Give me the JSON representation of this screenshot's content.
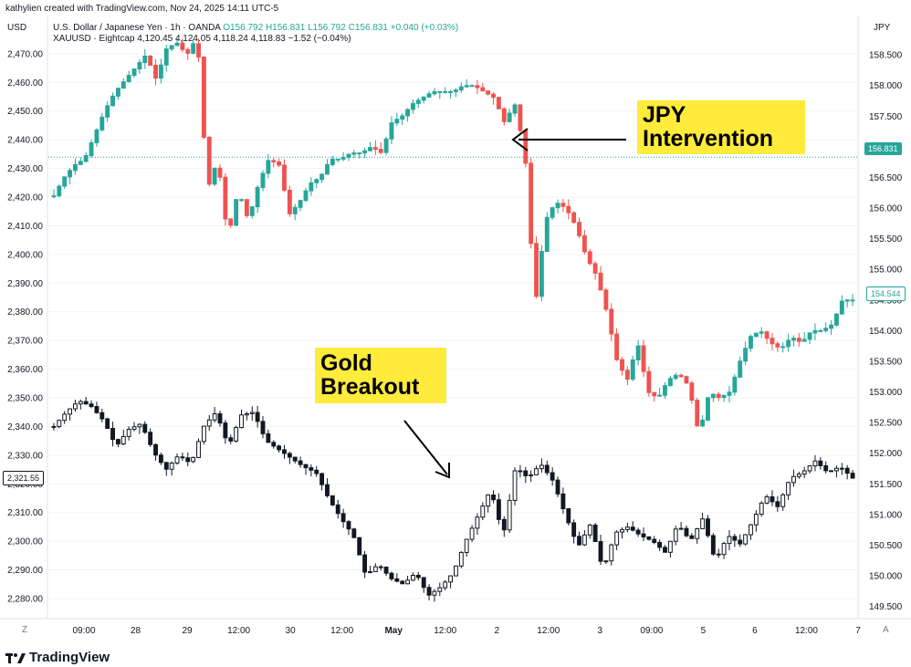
{
  "credit": "kathylien created with TradingView.com, Nov 24, 2025 14:11 UTC-5",
  "left_axis_label": "USD",
  "right_axis_label": "JPY",
  "series_header": {
    "usdjpy": {
      "name": "U.S. Dollar / Japanese Yen · 1h · OANDA",
      "O": "O156.792",
      "H": "H156.831",
      "L": "L156.792",
      "C": "C156.831",
      "change": "+0.040 (+0.03%)"
    },
    "xauusd": {
      "name": "XAUUSD · Eightcap",
      "values": "4,120.45  4,124.05  4,118.24  4,118.83  −1.52 (−0.04%)"
    }
  },
  "annotations": {
    "jpy": "JPY Intervention",
    "gold": "Gold Breakout"
  },
  "last_price_boxes": {
    "usdjpy_current": "156.831",
    "usdjpy_last": "154.544",
    "gold_last": "2,321.55"
  },
  "footer": {
    "logo_text": "TradingView",
    "z_label": "Z",
    "a_label": "A"
  },
  "colors": {
    "up": "#26a69a",
    "down": "#ef5350",
    "gold": "#131722",
    "annotation_bg": "#ffeb3b",
    "grid": "#f0f3fa"
  },
  "chart_data": {
    "type": "candlestick",
    "x_tick_labels": [
      "09:00",
      "28",
      "29",
      "12:00",
      "30",
      "12:00",
      "May",
      "12:00",
      "2",
      "12:00",
      "3",
      "09:00",
      "5",
      "6",
      "12:00",
      "7"
    ],
    "left_axis": {
      "label": "USD",
      "ylim": [
        2273,
        2476
      ],
      "ticks": [
        "2,470.00",
        "2,460.00",
        "2,450.00",
        "2,440.00",
        "2,430.00",
        "2,420.00",
        "2,410.00",
        "2,400.00",
        "2,390.00",
        "2,380.00",
        "2,370.00",
        "2,360.00",
        "2,350.00",
        "2,340.00",
        "2,330.00",
        "2,320.00",
        "2,310.00",
        "2,300.00",
        "2,290.00",
        "2,280.00"
      ]
    },
    "right_axis": {
      "label": "JPY",
      "ylim": [
        149.3,
        158.8
      ],
      "ticks": [
        "158.500",
        "158.000",
        "157.500",
        "157.000",
        "156.500",
        "156.000",
        "155.500",
        "155.000",
        "154.500",
        "154.000",
        "153.500",
        "153.000",
        "152.500",
        "152.000",
        "151.500",
        "151.000",
        "150.500",
        "150.000",
        "149.500"
      ]
    },
    "series": [
      {
        "name": "U.S. Dollar / Japanese Yen",
        "axis": "right",
        "close_path": [
          156.2,
          156.5,
          156.7,
          156.8,
          157.2,
          157.6,
          157.9,
          158.1,
          158.3,
          158.5,
          158.1,
          158.6,
          158.7,
          158.5,
          158.8,
          156.3,
          156.8,
          155.5,
          156.3,
          155.8,
          156.4,
          156.8,
          156.7,
          155.9,
          156.1,
          156.4,
          156.5,
          156.8,
          156.8,
          156.9,
          156.9,
          157.0,
          156.9,
          157.4,
          157.5,
          157.7,
          157.8,
          157.9,
          157.9,
          157.9,
          158.0,
          158.0,
          157.9,
          157.8,
          157.4,
          157.7,
          156.9,
          154.4,
          155.8,
          156.1,
          156.0,
          155.7,
          155.2,
          154.9,
          154.3,
          153.5,
          153.2,
          153.8,
          153.0,
          152.9,
          153.2,
          153.3,
          153.1,
          152.3,
          153.0,
          152.9,
          153.0,
          153.5,
          153.9,
          154.0,
          153.8,
          153.7,
          153.9,
          153.8,
          154.0,
          154.0,
          154.1,
          154.5,
          154.5
        ]
      },
      {
        "name": "XAUUSD",
        "axis": "left",
        "close_path": [
          2340,
          2345,
          2349,
          2347,
          2342,
          2333,
          2339,
          2341,
          2331,
          2325,
          2330,
          2327,
          2340,
          2345,
          2333,
          2344,
          2345,
          2335,
          2332,
          2329,
          2326,
          2324,
          2315,
          2308,
          2302,
          2288,
          2292,
          2287,
          2285,
          2289,
          2281,
          2284,
          2289,
          2300,
          2309,
          2318,
          2302,
          2326,
          2322,
          2327,
          2321,
          2309,
          2298,
          2306,
          2290,
          2303,
          2305,
          2302,
          2300,
          2296,
          2306,
          2300,
          2308,
          2293,
          2302,
          2299,
          2307,
          2316,
          2312,
          2322,
          2324,
          2328,
          2324,
          2326,
          2322
        ]
      }
    ]
  }
}
